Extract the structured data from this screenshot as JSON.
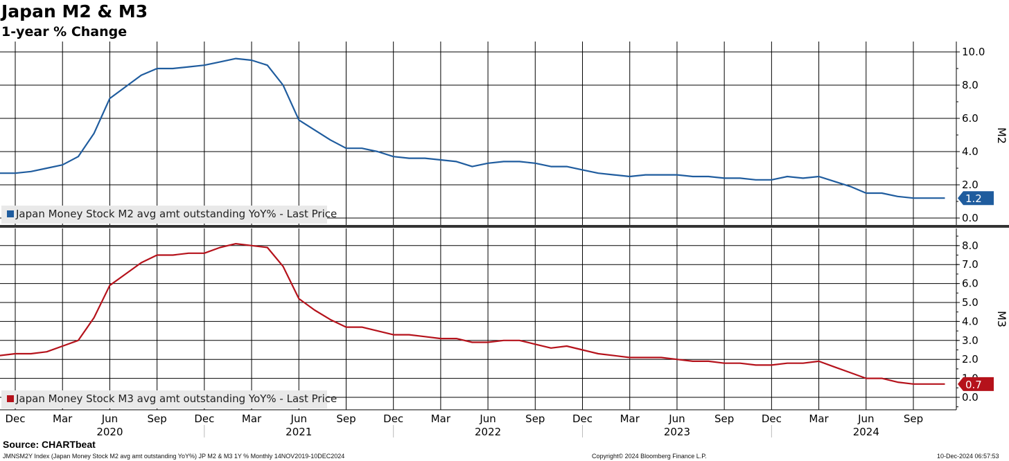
{
  "header": {
    "title": "Japan M2 & M3",
    "subtitle": "1-year % Change"
  },
  "footer": {
    "source": "Source: CHARTbeat",
    "ticker_info": "JMNSM2Y Index (Japan Money Stock M2 avg amt outstanding YoY%) JP M2 & M3 1Y %  Monthly 14NOV2019-10DEC2024",
    "copyright": "Copyright© 2024 Bloomberg Finance L.P.",
    "timestamp": "10-Dec-2024 06:57:53"
  },
  "colors": {
    "m2": "#1f5c9e",
    "m3": "#b5121b",
    "grid": "#000000"
  },
  "chart_data": [
    {
      "type": "line",
      "panel": "top",
      "ylabel": "M2",
      "ylim": [
        0,
        10
      ],
      "yticks": [
        "0.0",
        "2.0",
        "4.0",
        "6.0",
        "8.0",
        "10.0"
      ],
      "grid": true,
      "legend_position": "bottom-left",
      "last_value_label": "1.2",
      "series": [
        {
          "name": "Japan Money Stock M2 avg amt outstanding YoY% - Last Price",
          "x": [
            "2019-11",
            "2019-12",
            "2020-01",
            "2020-02",
            "2020-03",
            "2020-04",
            "2020-05",
            "2020-06",
            "2020-07",
            "2020-08",
            "2020-09",
            "2020-10",
            "2020-11",
            "2020-12",
            "2021-01",
            "2021-02",
            "2021-03",
            "2021-04",
            "2021-05",
            "2021-06",
            "2021-07",
            "2021-08",
            "2021-09",
            "2021-10",
            "2021-11",
            "2021-12",
            "2022-01",
            "2022-02",
            "2022-03",
            "2022-04",
            "2022-05",
            "2022-06",
            "2022-07",
            "2022-08",
            "2022-09",
            "2022-10",
            "2022-11",
            "2022-12",
            "2023-01",
            "2023-02",
            "2023-03",
            "2023-04",
            "2023-05",
            "2023-06",
            "2023-07",
            "2023-08",
            "2023-09",
            "2023-10",
            "2023-11",
            "2023-12",
            "2024-01",
            "2024-02",
            "2024-03",
            "2024-04",
            "2024-05",
            "2024-06",
            "2024-07",
            "2024-08",
            "2024-09",
            "2024-10",
            "2024-11"
          ],
          "values": [
            2.7,
            2.7,
            2.8,
            3.0,
            3.2,
            3.7,
            5.1,
            7.2,
            7.9,
            8.6,
            9.0,
            9.0,
            9.1,
            9.2,
            9.4,
            9.6,
            9.5,
            9.2,
            8.0,
            5.9,
            5.3,
            4.7,
            4.2,
            4.2,
            4.0,
            3.7,
            3.6,
            3.6,
            3.5,
            3.4,
            3.1,
            3.3,
            3.4,
            3.4,
            3.3,
            3.1,
            3.1,
            2.9,
            2.7,
            2.6,
            2.5,
            2.6,
            2.6,
            2.6,
            2.5,
            2.5,
            2.4,
            2.4,
            2.3,
            2.3,
            2.5,
            2.4,
            2.5,
            2.2,
            1.9,
            1.5,
            1.5,
            1.3,
            1.2,
            1.2,
            1.2
          ]
        }
      ]
    },
    {
      "type": "line",
      "panel": "bottom",
      "ylabel": "M3",
      "ylim": [
        -0.5,
        8.5
      ],
      "yticks": [
        "0.0",
        "1.0",
        "2.0",
        "3.0",
        "4.0",
        "5.0",
        "6.0",
        "7.0",
        "8.0"
      ],
      "grid": true,
      "legend_position": "bottom-left",
      "last_value_label": "0.7",
      "series": [
        {
          "name": "Japan Money Stock M3 avg amt outstanding YoY% - Last Price",
          "x": [
            "2019-11",
            "2019-12",
            "2020-01",
            "2020-02",
            "2020-03",
            "2020-04",
            "2020-05",
            "2020-06",
            "2020-07",
            "2020-08",
            "2020-09",
            "2020-10",
            "2020-11",
            "2020-12",
            "2021-01",
            "2021-02",
            "2021-03",
            "2021-04",
            "2021-05",
            "2021-06",
            "2021-07",
            "2021-08",
            "2021-09",
            "2021-10",
            "2021-11",
            "2021-12",
            "2022-01",
            "2022-02",
            "2022-03",
            "2022-04",
            "2022-05",
            "2022-06",
            "2022-07",
            "2022-08",
            "2022-09",
            "2022-10",
            "2022-11",
            "2022-12",
            "2023-01",
            "2023-02",
            "2023-03",
            "2023-04",
            "2023-05",
            "2023-06",
            "2023-07",
            "2023-08",
            "2023-09",
            "2023-10",
            "2023-11",
            "2023-12",
            "2024-01",
            "2024-02",
            "2024-03",
            "2024-04",
            "2024-05",
            "2024-06",
            "2024-07",
            "2024-08",
            "2024-09",
            "2024-10",
            "2024-11"
          ],
          "values": [
            2.2,
            2.3,
            2.3,
            2.4,
            2.7,
            3.0,
            4.2,
            5.9,
            6.5,
            7.1,
            7.5,
            7.5,
            7.6,
            7.6,
            7.9,
            8.1,
            8.0,
            7.9,
            6.9,
            5.2,
            4.6,
            4.1,
            3.7,
            3.7,
            3.5,
            3.3,
            3.3,
            3.2,
            3.1,
            3.1,
            2.9,
            2.9,
            3.0,
            3.0,
            2.8,
            2.6,
            2.7,
            2.5,
            2.3,
            2.2,
            2.1,
            2.1,
            2.1,
            2.0,
            1.9,
            1.9,
            1.8,
            1.8,
            1.7,
            1.7,
            1.8,
            1.8,
            1.9,
            1.6,
            1.3,
            1.0,
            1.0,
            0.8,
            0.7,
            0.7,
            0.7
          ]
        }
      ]
    }
  ],
  "x_axis": {
    "months": [
      {
        "label": "Dec",
        "date": "2019-12"
      },
      {
        "label": "Mar",
        "date": "2020-03"
      },
      {
        "label": "Jun",
        "date": "2020-06"
      },
      {
        "label": "Sep",
        "date": "2020-09"
      },
      {
        "label": "Dec",
        "date": "2020-12"
      },
      {
        "label": "Mar",
        "date": "2021-03"
      },
      {
        "label": "Jun",
        "date": "2021-06"
      },
      {
        "label": "Sep",
        "date": "2021-09"
      },
      {
        "label": "Dec",
        "date": "2021-12"
      },
      {
        "label": "Mar",
        "date": "2022-03"
      },
      {
        "label": "Jun",
        "date": "2022-06"
      },
      {
        "label": "Sep",
        "date": "2022-09"
      },
      {
        "label": "Dec",
        "date": "2022-12"
      },
      {
        "label": "Mar",
        "date": "2023-03"
      },
      {
        "label": "Jun",
        "date": "2023-06"
      },
      {
        "label": "Sep",
        "date": "2023-09"
      },
      {
        "label": "Dec",
        "date": "2023-12"
      },
      {
        "label": "Mar",
        "date": "2024-03"
      },
      {
        "label": "Jun",
        "date": "2024-06"
      },
      {
        "label": "Sep",
        "date": "2024-09"
      }
    ],
    "years": [
      {
        "label": "2020",
        "date": "2020-06"
      },
      {
        "label": "2021",
        "date": "2021-06"
      },
      {
        "label": "2022",
        "date": "2022-06"
      },
      {
        "label": "2023",
        "date": "2023-06"
      },
      {
        "label": "2024",
        "date": "2024-06"
      }
    ]
  }
}
